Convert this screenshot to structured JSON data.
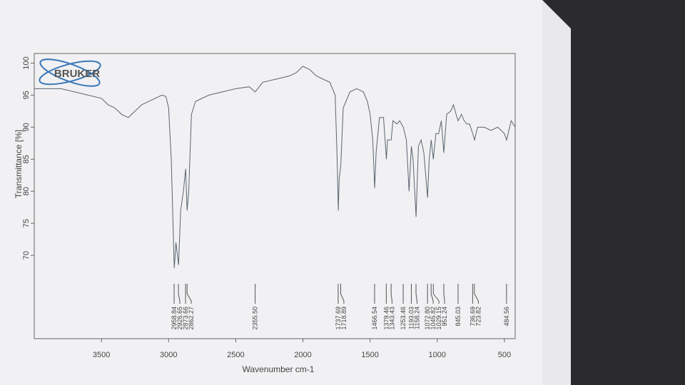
{
  "chart_data": {
    "type": "line",
    "logo": "BRUKER",
    "xlabel": "Wavenumber cm-1",
    "ylabel": "Transmittance [%]",
    "xlim": [
      4000,
      420
    ],
    "ylim": [
      57,
      101.5
    ],
    "xticks": [
      3500,
      3000,
      2500,
      2000,
      1500,
      1000,
      500
    ],
    "yticks": [
      70,
      75,
      80,
      85,
      90,
      95,
      100
    ],
    "color": "#5a6470",
    "x": [
      4000,
      3900,
      3800,
      3700,
      3600,
      3500,
      3450,
      3400,
      3350,
      3300,
      3250,
      3200,
      3150,
      3100,
      3050,
      3020,
      3000,
      2980,
      2958,
      2945,
      2926,
      2910,
      2890,
      2873,
      2862,
      2850,
      2830,
      2800,
      2700,
      2600,
      2500,
      2400,
      2355,
      2300,
      2200,
      2100,
      2050,
      2000,
      1950,
      1900,
      1850,
      1800,
      1760,
      1745,
      1737,
      1730,
      1718,
      1710,
      1700,
      1650,
      1600,
      1550,
      1520,
      1500,
      1480,
      1466,
      1455,
      1430,
      1400,
      1379,
      1370,
      1343,
      1330,
      1300,
      1280,
      1253,
      1230,
      1210,
      1193,
      1180,
      1158,
      1140,
      1120,
      1100,
      1072,
      1060,
      1045,
      1029,
      1010,
      990,
      970,
      951,
      930,
      900,
      880,
      860,
      845,
      820,
      800,
      780,
      760,
      736,
      723,
      700,
      650,
      600,
      550,
      500,
      484,
      450,
      420
    ],
    "values": [
      96,
      96,
      96,
      95.5,
      95,
      94.5,
      93.5,
      93,
      92,
      91.5,
      92.5,
      93.5,
      94,
      94.5,
      95,
      94.8,
      93,
      85,
      68,
      72,
      68.5,
      77,
      80,
      83.5,
      77,
      80,
      92,
      94,
      95,
      95.5,
      96,
      96.3,
      95.5,
      97,
      97.5,
      98,
      98.5,
      99.5,
      99,
      98,
      97.5,
      97,
      95,
      85,
      77,
      82,
      84,
      88,
      93,
      95.5,
      96,
      95.5,
      94,
      92,
      88,
      80.5,
      86,
      91.5,
      91.5,
      85,
      88,
      88,
      91,
      90.5,
      91,
      90,
      88,
      80,
      87,
      85,
      76,
      87,
      88,
      86,
      79,
      85,
      88,
      85,
      89,
      89,
      91,
      86,
      92,
      92.5,
      93.5,
      92,
      91,
      92,
      91,
      90.5,
      90.5,
      89,
      88,
      90,
      90,
      89.5,
      90,
      89,
      88,
      91,
      90
    ],
    "peaks": [
      2958.84,
      2926.65,
      {
        "value": 2873.66,
        "label": "2873.66"
      },
      {
        "value": 2862.27,
        "label": "2862.27"
      },
      {
        "value": 2355.5,
        "label": "2355.50"
      },
      1737.69,
      1718.89,
      1466.54,
      1379.46,
      1343.43,
      1253.46,
      1193.03,
      1158.24,
      {
        "value": 1072.8,
        "label": "1072.80"
      },
      1045.82,
      1029.15,
      951.24,
      845.03,
      736.69,
      723.82,
      484.56
    ]
  }
}
